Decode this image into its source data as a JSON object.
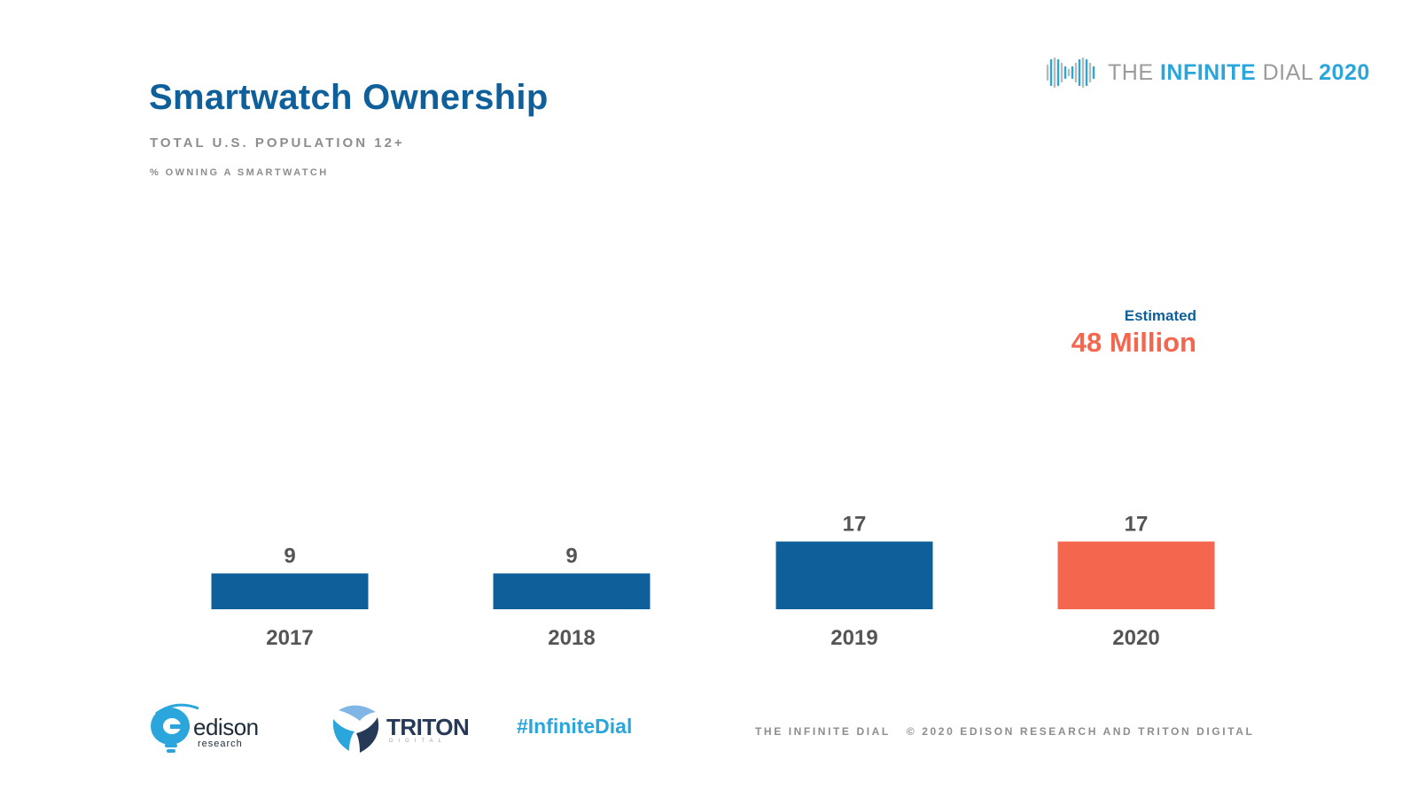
{
  "header": {
    "title": "Smartwatch Ownership",
    "subtitle": "TOTAL U.S. POPULATION 12+",
    "metric": "% OWNING A SMARTWATCH"
  },
  "brand": {
    "the": "THE ",
    "infinite": "INFINITE",
    "dial": " DIAL",
    "year": "2020",
    "icon": "infinity-wave-logo-icon"
  },
  "callout": {
    "label": "Estimated",
    "value": "48 Million"
  },
  "colors": {
    "bar": "#0f609a",
    "highlight": "#f4664e",
    "title": "#0f609a",
    "accent": "#2ba6dc"
  },
  "chart_data": {
    "type": "bar",
    "categories": [
      "2017",
      "2018",
      "2019",
      "2020"
    ],
    "values": [
      9,
      9,
      17,
      17
    ],
    "highlight_index": 3,
    "title": "Smartwatch Ownership",
    "subtitle": "TOTAL U.S. POPULATION 12+",
    "ylabel": "% OWNING A SMARTWATCH",
    "xlabel": "",
    "ylim": [
      0,
      100
    ],
    "grid": false,
    "data_labels": true
  },
  "footer": {
    "edison_word": "edison",
    "edison_sub": "research",
    "triton_word": "TRITON",
    "triton_sub": "DIGITAL",
    "hashtag": "#InfiniteDial",
    "credit_left": "THE INFINITE DIAL",
    "credit_right": "© 2020 EDISON RESEARCH AND TRITON DIGITAL"
  }
}
